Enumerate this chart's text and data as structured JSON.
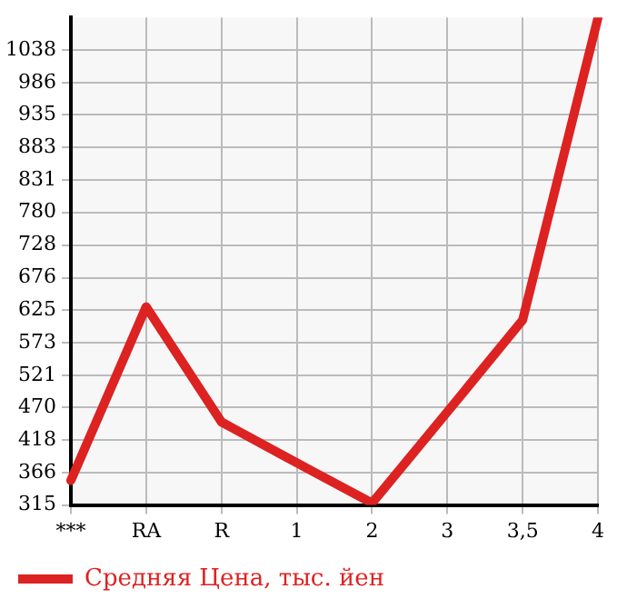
{
  "chart_data": {
    "type": "line",
    "categories": [
      "***",
      "RA",
      "R",
      "1",
      "2",
      "3",
      "3,5",
      "4"
    ],
    "series": [
      {
        "name": "Средняя Цена, тыс. йен",
        "color": "#dd2222",
        "values": [
          354,
          630,
          447,
          382,
          318,
          463,
          609,
          1089
        ]
      }
    ],
    "ylim": [
      315,
      1090
    ],
    "yticks": [
      315,
      366,
      418,
      470,
      521,
      573,
      625,
      676,
      728,
      780,
      831,
      883,
      935,
      986,
      1038
    ],
    "grid": true,
    "legend": "bottom",
    "marker": "none",
    "line_style": "solid"
  }
}
